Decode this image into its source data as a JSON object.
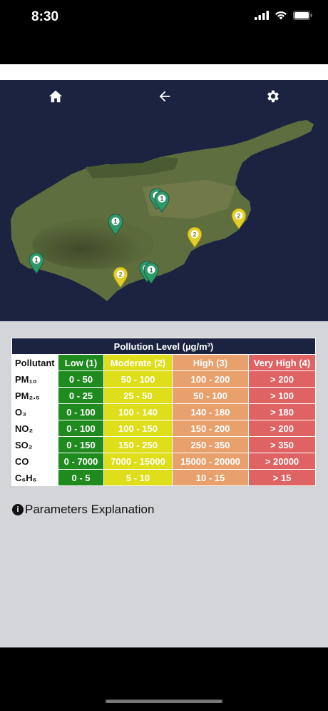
{
  "status": {
    "time": "8:30"
  },
  "nav": {
    "home_icon": "home-icon",
    "back_icon": "arrow-left-icon",
    "settings_icon": "gear-icon"
  },
  "markers": [
    {
      "label": "1",
      "color": "#2e9a6a"
    },
    {
      "label": "1",
      "color": "#2e9a6a"
    },
    {
      "label": "1",
      "color": "#2e9a6a"
    },
    {
      "label": "1",
      "color": "#2e9a6a"
    },
    {
      "label": "1",
      "color": "#2e9a6a"
    },
    {
      "label": "1",
      "color": "#2e9a6a"
    },
    {
      "label": "2",
      "color": "#e0cf2a"
    },
    {
      "label": "2",
      "color": "#e0cf2a"
    },
    {
      "label": "2",
      "color": "#e0cf2a"
    }
  ],
  "table": {
    "title": "Pollution Level (µg/m³)",
    "headers": [
      "Pollutant",
      "Low (1)",
      "Moderate (2)",
      "High (3)",
      "Very High (4)"
    ],
    "rows": [
      {
        "pollutant": "PM₁₀",
        "low": "0 - 50",
        "moderate": "50 - 100",
        "high": "100 - 200",
        "vhigh": "> 200"
      },
      {
        "pollutant": "PM₂.₅",
        "low": "0 - 25",
        "moderate": "25 - 50",
        "high": "50 - 100",
        "vhigh": "> 100"
      },
      {
        "pollutant": "O₃",
        "low": "0 - 100",
        "moderate": "100 - 140",
        "high": "140 - 180",
        "vhigh": "> 180"
      },
      {
        "pollutant": "NO₂",
        "low": "0 - 100",
        "moderate": "100 - 150",
        "high": "150 - 200",
        "vhigh": "> 200"
      },
      {
        "pollutant": "SO₂",
        "low": "0 - 150",
        "moderate": "150 - 250",
        "high": "250 - 350",
        "vhigh": "> 350"
      },
      {
        "pollutant": "CO",
        "low": "0 - 7000",
        "moderate": "7000 - 15000",
        "high": "15000 - 20000",
        "vhigh": "> 20000"
      },
      {
        "pollutant": "C₆H₆",
        "low": "0 - 5",
        "moderate": "5 - 10",
        "high": "10 - 15",
        "vhigh": "> 15"
      }
    ]
  },
  "explain": {
    "label": "Parameters Explanation",
    "icon": "info-icon"
  },
  "colors": {
    "low": "#1f8a1e",
    "moderate": "#dede1a",
    "high": "#e8a06d",
    "very_high": "#e06363",
    "map_bg": "#1b2340"
  }
}
